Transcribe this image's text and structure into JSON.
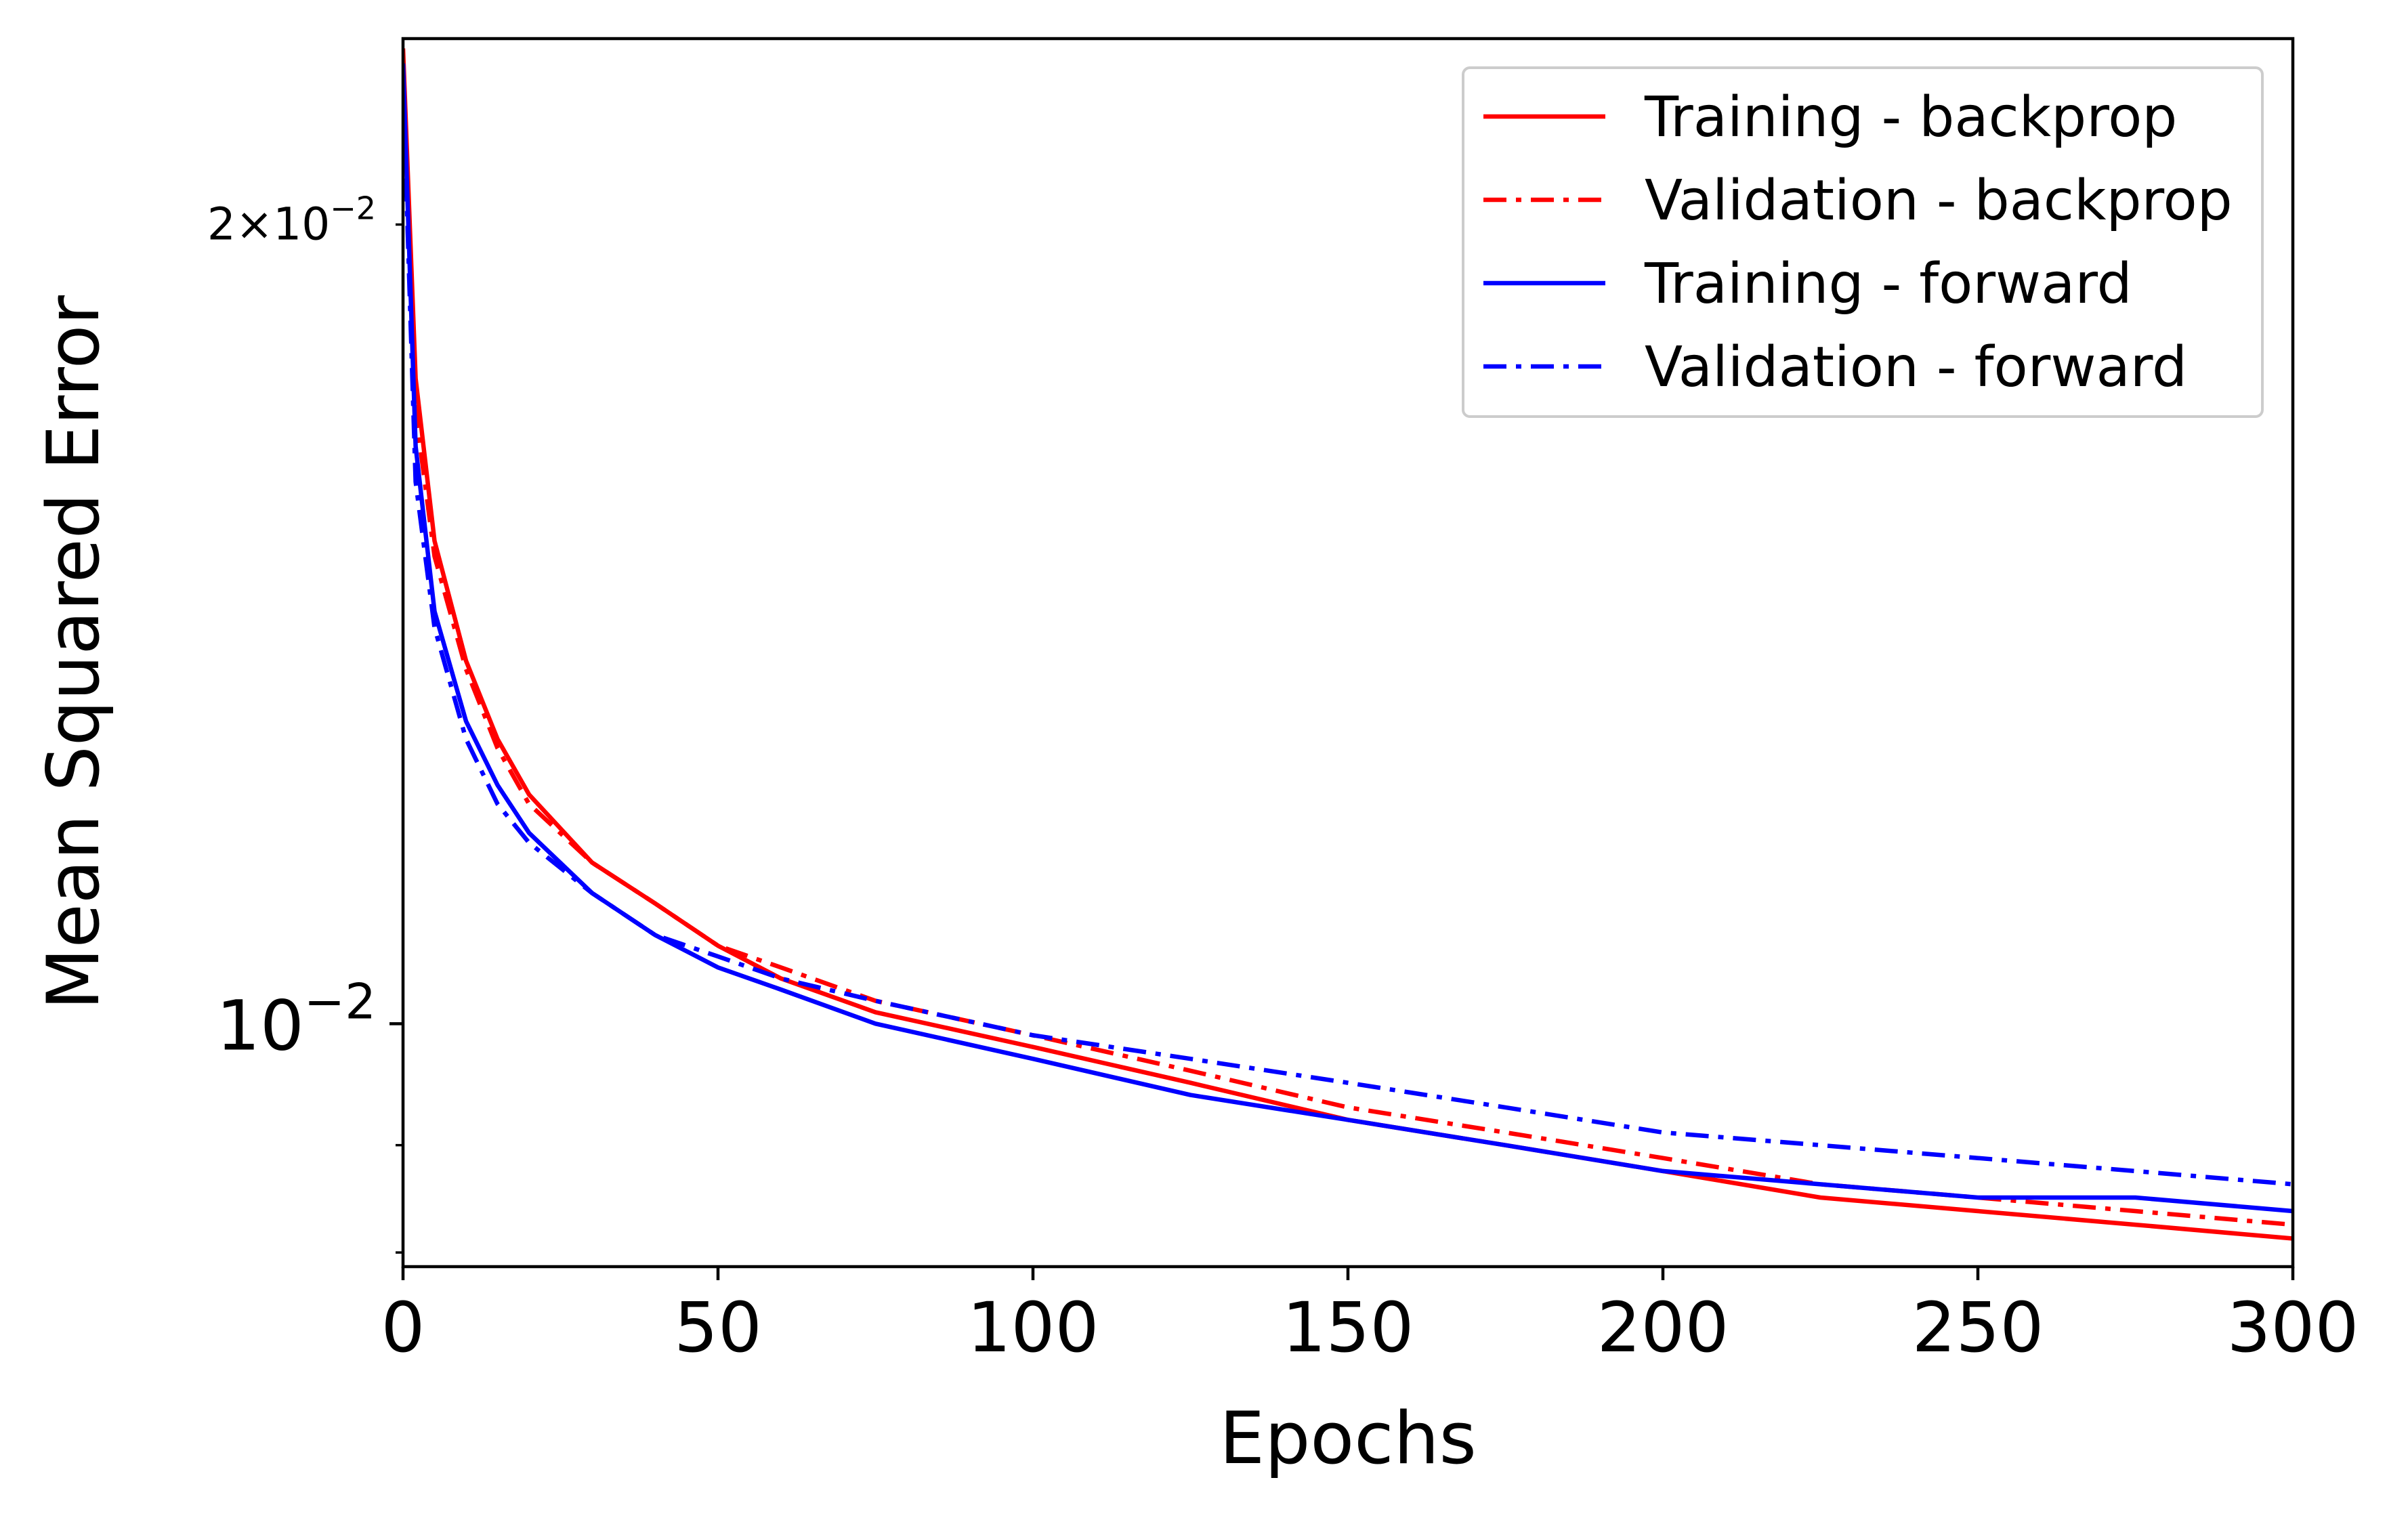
{
  "chart_data": {
    "type": "line",
    "title": "",
    "xlabel": "Epochs",
    "ylabel": "Mean Squared Error",
    "xlim": [
      0,
      300
    ],
    "ylim": [
      0.0081,
      0.0235
    ],
    "yscale": "log",
    "grid": false,
    "legend_position": "top-right",
    "x_ticks": [
      {
        "value": 0,
        "label": "0"
      },
      {
        "value": 50,
        "label": "50"
      },
      {
        "value": 100,
        "label": "100"
      },
      {
        "value": 150,
        "label": "150"
      },
      {
        "value": 200,
        "label": "200"
      },
      {
        "value": 250,
        "label": "250"
      },
      {
        "value": 300,
        "label": "300"
      }
    ],
    "y_major_ticks": [
      {
        "value": 0.01,
        "base": "10",
        "exp": "−2"
      }
    ],
    "y_labeled_minor_ticks": [
      {
        "value": 0.02,
        "coef": "2",
        "times": "×",
        "base": "10",
        "exp": "−2"
      }
    ],
    "y_minor_ticks": [
      0.009,
      0.0082
    ],
    "series": [
      {
        "name": "Training - backprop",
        "color": "#ff0000",
        "dash": "solid",
        "x": [
          0,
          2,
          5,
          10,
          15,
          20,
          30,
          40,
          50,
          60,
          75,
          100,
          125,
          150,
          175,
          200,
          225,
          250,
          275,
          300
        ],
        "y": [
          0.0233,
          0.0175,
          0.0152,
          0.0137,
          0.0128,
          0.0122,
          0.0115,
          0.0111,
          0.0107,
          0.0104,
          0.0101,
          0.0098,
          0.0095,
          0.0092,
          0.009,
          0.0088,
          0.0086,
          0.0085,
          0.0084,
          0.0083
        ]
      },
      {
        "name": "Validation - backprop",
        "color": "#ff0000",
        "dash": "dashdot",
        "x": [
          0,
          2,
          5,
          10,
          15,
          20,
          30,
          40,
          50,
          60,
          75,
          100,
          125,
          150,
          175,
          200,
          225,
          250,
          275,
          300
        ],
        "y": [
          0.0228,
          0.017,
          0.015,
          0.0136,
          0.0127,
          0.0121,
          0.0115,
          0.0111,
          0.0107,
          0.0105,
          0.0102,
          0.0099,
          0.0096,
          0.0093,
          0.0091,
          0.0089,
          0.0087,
          0.0086,
          0.0085,
          0.0084
        ]
      },
      {
        "name": "Training - forward",
        "color": "#0000ff",
        "dash": "solid",
        "x": [
          0,
          2,
          5,
          10,
          15,
          20,
          30,
          40,
          50,
          60,
          75,
          100,
          125,
          150,
          175,
          200,
          225,
          250,
          275,
          300
        ],
        "y": [
          0.023,
          0.0165,
          0.0143,
          0.013,
          0.0123,
          0.0118,
          0.0112,
          0.0108,
          0.0105,
          0.0103,
          0.01,
          0.0097,
          0.0094,
          0.0092,
          0.009,
          0.0088,
          0.0087,
          0.0086,
          0.0086,
          0.0085
        ]
      },
      {
        "name": "Validation - forward",
        "color": "#0000ff",
        "dash": "dashdot",
        "x": [
          0,
          2,
          5,
          10,
          15,
          20,
          30,
          40,
          50,
          60,
          75,
          100,
          125,
          150,
          175,
          200,
          225,
          250,
          275,
          300
        ],
        "y": [
          0.0226,
          0.016,
          0.0141,
          0.0128,
          0.0121,
          0.0117,
          0.0112,
          0.0108,
          0.0106,
          0.0104,
          0.0102,
          0.0099,
          0.0097,
          0.0095,
          0.0093,
          0.0091,
          0.009,
          0.0089,
          0.0088,
          0.0087
        ]
      }
    ]
  }
}
